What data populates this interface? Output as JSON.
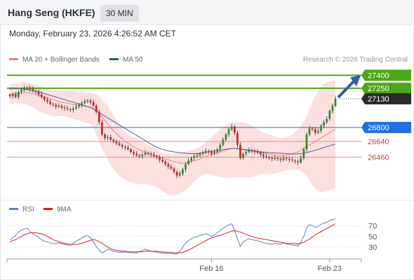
{
  "header": {
    "title": "Hang Seng (HKFE)",
    "timeframe": "30 MIN"
  },
  "timestamp": "Monday, February 23, 2026 4:26:52 AM CET",
  "credit": "Research © 2026 Trading Central",
  "legend": [
    {
      "label": "MA 20 + Bollinger Bands",
      "color": "#f08080"
    },
    {
      "label": "MA 50",
      "color": "#2f5496"
    }
  ],
  "rsi_legend": [
    {
      "label": "RSI",
      "color": "#5b7fd6"
    },
    {
      "label": "9MA",
      "color": "#d62020"
    }
  ],
  "chart_data": [
    {
      "type": "candlestick",
      "ylim": [
        25990,
        27500
      ],
      "x_ticks": [
        "Feb 16",
        "Feb 23"
      ],
      "levels": [
        {
          "label": "27400",
          "value": 27400,
          "kind": "resistance",
          "color": "#4da619"
        },
        {
          "label": "27250",
          "value": 27250,
          "kind": "resistance",
          "color": "#4da619"
        },
        {
          "label": "27130",
          "value": 27130,
          "kind": "last",
          "color": "#2b2b2b"
        },
        {
          "label": "26800",
          "value": 26800,
          "kind": "pivot",
          "color": "#1f6fe0"
        },
        {
          "label": "26640",
          "value": 26640,
          "kind": "support",
          "color": "#e05050"
        },
        {
          "label": "26460",
          "value": 26460,
          "kind": "support",
          "color": "#e05050"
        }
      ],
      "close": [
        27160,
        27180,
        27150,
        27210,
        27230,
        27250,
        27260,
        27240,
        27220,
        27210,
        27180,
        27150,
        27120,
        27100,
        27070,
        27060,
        27040,
        27050,
        27030,
        27020,
        27010,
        27000,
        27020,
        27040,
        27060,
        27080,
        27100,
        27110,
        27090,
        27050,
        26980,
        26860,
        26720,
        26680,
        26690,
        26660,
        26640,
        26620,
        26600,
        26580,
        26570,
        26550,
        26520,
        26500,
        26480,
        26470,
        26490,
        26510,
        26500,
        26490,
        26470,
        26460,
        26430,
        26410,
        26380,
        26350,
        26330,
        26290,
        26250,
        26270,
        26320,
        26380,
        26420,
        26450,
        26470,
        26480,
        26500,
        26510,
        26530,
        26520,
        26500,
        26520,
        26550,
        26600,
        26660,
        26720,
        26780,
        26810,
        26740,
        26600,
        26450,
        26500,
        26520,
        26540,
        26530,
        26520,
        26510,
        26490,
        26470,
        26460,
        26450,
        26440,
        26450,
        26440,
        26430,
        26450,
        26440,
        26430,
        26420,
        26410,
        26400,
        26450,
        26550,
        26720,
        26790,
        26780,
        26740,
        26760,
        26820,
        26860,
        26900,
        26990,
        27050,
        27130
      ],
      "bb_upper": [
        27290,
        27300,
        27310,
        27310,
        27320,
        27320,
        27320,
        27310,
        27300,
        27290,
        27280,
        27270,
        27260,
        27250,
        27240,
        27230,
        27230,
        27230,
        27230,
        27230,
        27220,
        27220,
        27220,
        27210,
        27210,
        27210,
        27210,
        27200,
        27200,
        27190,
        27180,
        27160,
        27120,
        27080,
        27040,
        26990,
        26940,
        26890,
        26840,
        26790,
        26750,
        26720,
        26700,
        26690,
        26670,
        26660,
        26640,
        26620,
        26600,
        26580,
        26570,
        26550,
        26530,
        26510,
        26500,
        26500,
        26500,
        26500,
        26500,
        26510,
        26510,
        26520,
        26530,
        26540,
        26550,
        26560,
        26580,
        26600,
        26630,
        26660,
        26690,
        26720,
        26750,
        26780,
        26810,
        26830,
        26850,
        26860,
        26860,
        26860,
        26860,
        26860,
        26850,
        26840,
        26820,
        26800,
        26780,
        26760,
        26740,
        26730,
        26720,
        26710,
        26700,
        26690,
        26680,
        26680,
        26690,
        26700,
        26720,
        26750,
        26780,
        26810,
        26860,
        26930,
        27010,
        27090,
        27160,
        27220,
        27270,
        27300,
        27320,
        27330,
        27340,
        27350
      ],
      "bb_lower": [
        27060,
        27070,
        27080,
        27080,
        27080,
        27070,
        27060,
        27050,
        27030,
        27010,
        26990,
        26970,
        26960,
        26950,
        26940,
        26930,
        26930,
        26930,
        26930,
        26930,
        26920,
        26910,
        26900,
        26890,
        26880,
        26870,
        26860,
        26850,
        26840,
        26790,
        26720,
        26640,
        26560,
        26490,
        26430,
        26370,
        26320,
        26280,
        26250,
        26220,
        26200,
        26180,
        26170,
        26160,
        26150,
        26150,
        26150,
        26150,
        26150,
        26140,
        26130,
        26110,
        26090,
        26070,
        26050,
        26030,
        26020,
        26020,
        26030,
        26040,
        26060,
        26080,
        26110,
        26140,
        26180,
        26210,
        26240,
        26260,
        26270,
        26270,
        26260,
        26250,
        26240,
        26230,
        26230,
        26220,
        26220,
        26230,
        26230,
        26230,
        26230,
        26230,
        26230,
        26230,
        26230,
        26240,
        26250,
        26260,
        26270,
        26270,
        26270,
        26270,
        26270,
        26280,
        26290,
        26300,
        26310,
        26310,
        26310,
        26310,
        26310,
        26300,
        26280,
        26240,
        26190,
        26140,
        26100,
        26070,
        26060,
        26060,
        26070,
        26080,
        26090,
        26100
      ],
      "ma20": [
        27180,
        27185,
        27190,
        27195,
        27200,
        27200,
        27200,
        27195,
        27190,
        27180,
        27170,
        27160,
        27150,
        27140,
        27130,
        27120,
        27110,
        27100,
        27090,
        27085,
        27080,
        27070,
        27065,
        27060,
        27055,
        27050,
        27045,
        27040,
        27035,
        27020,
        27000,
        26960,
        26920,
        26880,
        26840,
        26800,
        26760,
        26730,
        26700,
        26670,
        26640,
        26620,
        26600,
        26580,
        26560,
        26545,
        26530,
        26515,
        26500,
        26490,
        26480,
        26470,
        26460,
        26450,
        26440,
        26430,
        26420,
        26410,
        26400,
        26390,
        26390,
        26395,
        26400,
        26410,
        26420,
        26430,
        26440,
        26455,
        26470,
        26480,
        26490,
        26500,
        26510,
        26520,
        26530,
        26540,
        26550,
        26560,
        26560,
        26555,
        26550,
        26545,
        26540,
        26535,
        26530,
        26525,
        26520,
        26515,
        26510,
        26500,
        26495,
        26490,
        26485,
        26480,
        26480,
        26480,
        26485,
        26490,
        26500,
        26510,
        26520,
        26540,
        26560,
        26580,
        26600,
        26620,
        26640,
        26660,
        26680,
        26700,
        26720,
        26740,
        26760,
        26780
      ],
      "ma50": [
        27240,
        27245,
        27245,
        27245,
        27245,
        27240,
        27235,
        27230,
        27220,
        27215,
        27210,
        27200,
        27190,
        27180,
        27170,
        27160,
        27150,
        27140,
        27130,
        27120,
        27110,
        27100,
        27090,
        27080,
        27070,
        27060,
        27050,
        27040,
        27030,
        27010,
        26990,
        26970,
        26950,
        26930,
        26910,
        26890,
        26870,
        26850,
        26830,
        26810,
        26790,
        26770,
        26750,
        26730,
        26710,
        26690,
        26670,
        26650,
        26630,
        26610,
        26590,
        26575,
        26560,
        26550,
        26540,
        26530,
        26525,
        26520,
        26515,
        26510,
        26510,
        26505,
        26500,
        26500,
        26500,
        26500,
        26505,
        26510,
        26515,
        26520,
        26525,
        26530,
        26535,
        26540,
        26545,
        26550,
        26555,
        26560,
        26560,
        26560,
        26555,
        26550,
        26545,
        26540,
        26535,
        26530,
        26525,
        26520,
        26518,
        26515,
        26512,
        26510,
        26508,
        26506,
        26504,
        26502,
        26500,
        26498,
        26496,
        26496,
        26498,
        26500,
        26505,
        26512,
        26520,
        26530,
        26540,
        26550,
        26560,
        26570,
        26580,
        26590,
        26600,
        26610
      ],
      "forecast_arrow": {
        "from": 27130,
        "to": 27400
      }
    },
    {
      "type": "line",
      "title": "RSI",
      "y_ticks": [
        70,
        50,
        30
      ],
      "ylim": [
        10,
        100
      ],
      "series": [
        {
          "name": "RSI",
          "values": [
            44,
            47,
            52,
            58,
            62,
            64,
            66,
            60,
            55,
            52,
            48,
            44,
            41,
            40,
            38,
            37,
            36,
            38,
            36,
            35,
            34,
            33,
            37,
            41,
            44,
            47,
            50,
            52,
            47,
            40,
            31,
            24,
            19,
            22,
            26,
            24,
            22,
            21,
            20,
            20,
            21,
            20,
            19,
            19,
            19,
            21,
            24,
            26,
            24,
            22,
            21,
            20,
            19,
            19,
            18,
            18,
            18,
            17,
            17,
            22,
            30,
            37,
            42,
            46,
            48,
            49,
            52,
            53,
            55,
            53,
            50,
            53,
            57,
            61,
            65,
            69,
            72,
            74,
            61,
            45,
            31,
            40,
            43,
            46,
            44,
            43,
            42,
            40,
            38,
            37,
            36,
            35,
            37,
            36,
            35,
            38,
            36,
            35,
            34,
            33,
            32,
            39,
            50,
            66,
            72,
            71,
            67,
            69,
            73,
            75,
            77,
            80,
            82,
            83
          ]
        },
        {
          "name": "9MA",
          "values": [
            40,
            42,
            44,
            47,
            50,
            53,
            55,
            57,
            57,
            57,
            56,
            55,
            53,
            50,
            47,
            44,
            42,
            40,
            38,
            37,
            36,
            35,
            35,
            35,
            36,
            37,
            39,
            41,
            43,
            44,
            43,
            40,
            37,
            33,
            30,
            27,
            25,
            24,
            23,
            22,
            22,
            21,
            21,
            21,
            21,
            21,
            21,
            22,
            22,
            22,
            22,
            22,
            21,
            21,
            20,
            20,
            20,
            19,
            19,
            19,
            20,
            22,
            24,
            27,
            30,
            33,
            36,
            39,
            42,
            45,
            47,
            49,
            51,
            52,
            54,
            56,
            58,
            60,
            61,
            60,
            58,
            56,
            54,
            52,
            50,
            48,
            47,
            46,
            45,
            44,
            43,
            42,
            41,
            40,
            39,
            38,
            37,
            37,
            37,
            36,
            36,
            37,
            39,
            42,
            45,
            49,
            53,
            56,
            59,
            62,
            65,
            68,
            71,
            74
          ]
        }
      ]
    }
  ]
}
